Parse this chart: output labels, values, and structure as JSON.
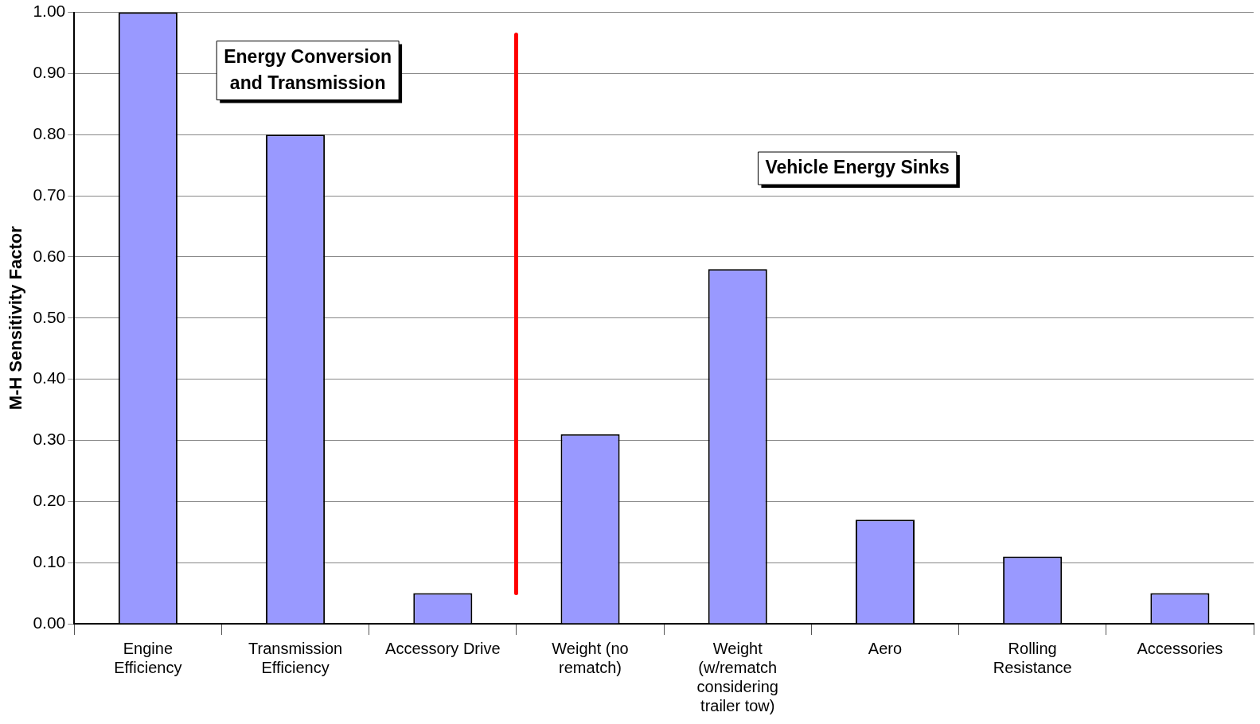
{
  "chart_data": {
    "type": "bar",
    "ylabel": "M-H Sensitivity Factor",
    "categories": [
      "Engine Efficiency",
      "Transmission Efficiency",
      "Accessory Drive",
      "Weight (no rematch)",
      "Weight (w/rematch considering trailer tow)",
      "Aero",
      "Rolling Resistance",
      "Accessories"
    ],
    "values": [
      1.0,
      0.8,
      0.05,
      0.31,
      0.58,
      0.17,
      0.11,
      0.05
    ],
    "color": "#9999ff",
    "ylim": [
      0,
      1
    ],
    "yticks": [
      {
        "value": 0,
        "label": "0.00"
      },
      {
        "value": 0.1,
        "label": "0.10"
      },
      {
        "value": 0.2,
        "label": "0.20"
      },
      {
        "value": 0.3,
        "label": "0.30"
      },
      {
        "value": 0.4,
        "label": "0.40"
      },
      {
        "value": 0.5,
        "label": "0.50"
      },
      {
        "value": 0.6,
        "label": "0.60"
      },
      {
        "value": 0.7,
        "label": "0.70"
      },
      {
        "value": 0.8,
        "label": "0.80"
      },
      {
        "value": 0.9,
        "label": "0.90"
      },
      {
        "value": 1,
        "label": "1.00"
      }
    ],
    "grid": "y",
    "legend": false,
    "annotations": [
      "Energy Conversion and Transmission",
      "Vehicle Energy Sinks"
    ]
  }
}
